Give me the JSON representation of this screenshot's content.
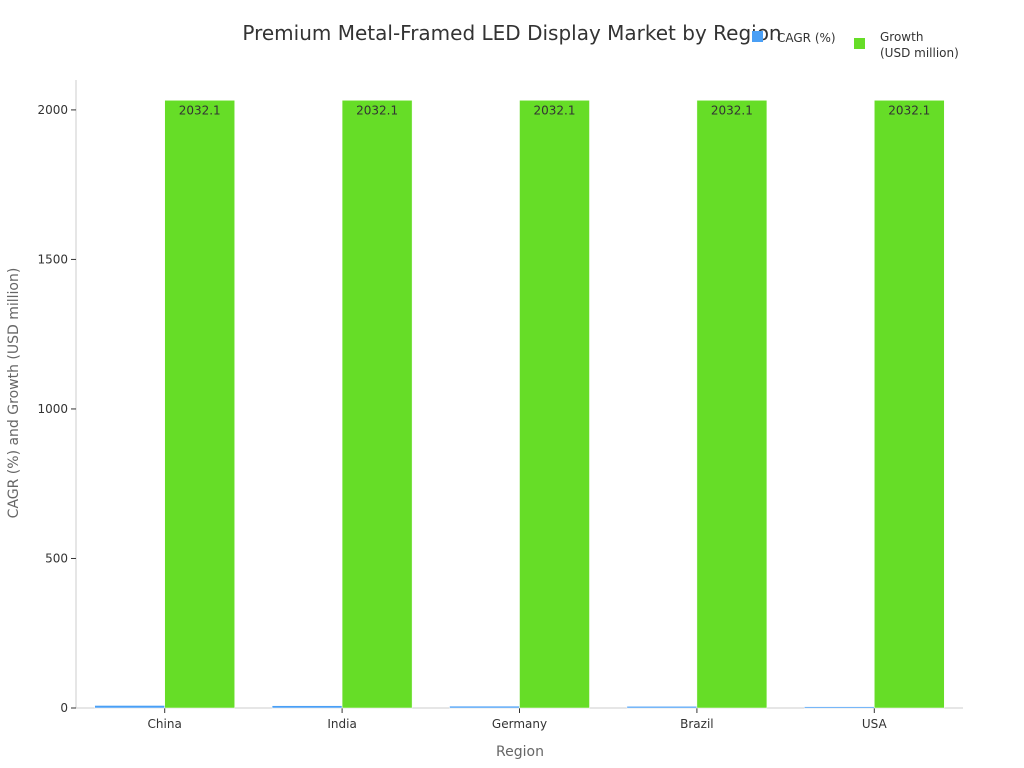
{
  "chart_data": {
    "type": "bar",
    "title": "Premium Metal-Framed LED Display Market by Region",
    "xlabel": "Region",
    "ylabel": "CAGR (%) and Growth (USD million)",
    "categories": [
      "China",
      "India",
      "Germany",
      "Brazil",
      "USA"
    ],
    "series": [
      {
        "name": "CAGR (%)",
        "values": [
          8.5,
          7.8,
          6.2,
          5.5,
          4.5
        ],
        "color": "#4a9ff5",
        "labels": [
          "",
          "",
          "",
          "",
          ""
        ]
      },
      {
        "name": "Growth (USD million)",
        "legend_lines": [
          "Growth",
          "(USD million)"
        ],
        "values": [
          2032.1,
          2032.1,
          2032.1,
          2032.1,
          2032.1
        ],
        "color": "#66dd27",
        "labels": [
          "2032.1",
          "2032.1",
          "2032.1",
          "2032.1",
          "2032.1"
        ]
      }
    ],
    "ylim": [
      0,
      2100
    ],
    "yticks": [
      0,
      500,
      1000,
      1500,
      2000
    ],
    "grid": false,
    "legend_position": "top-right"
  }
}
